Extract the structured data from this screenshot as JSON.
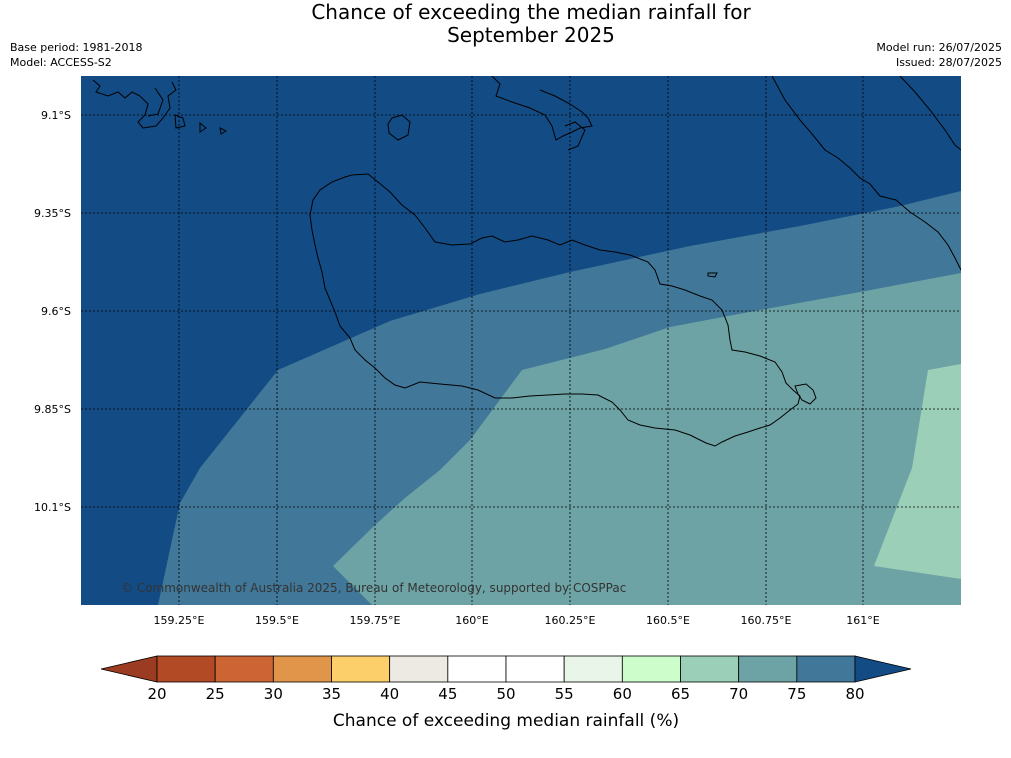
{
  "header": {
    "title_line1": "Chance of exceeding the median rainfall for",
    "title_line2": "September 2025",
    "base_period": "Base period: 1981-2018",
    "model": "Model: ACCESS-S2",
    "model_run": "Model run: 26/07/2025",
    "issued": "Issued: 28/07/2025"
  },
  "map": {
    "lat_labels": [
      "9.1°S",
      "9.35°S",
      "9.6°S",
      "9.85°S",
      "10.1°S"
    ],
    "lon_labels": [
      "159.25°E",
      "159.5°E",
      "159.75°E",
      "160°E",
      "160.25°E",
      "160.5°E",
      "160.75°E",
      "161°E"
    ],
    "credit": "© Commonwealth of Australia 2025, Bureau of Meteorology, supported by COSPPac",
    "zone_colors": {
      "75_80": "#134b85",
      "70_75": "#417798",
      "65_70": "#6ea3a5",
      "60_65": "#9bcfb8"
    }
  },
  "colorbar": {
    "ticks": [
      "20",
      "25",
      "30",
      "35",
      "40",
      "45",
      "50",
      "55",
      "60",
      "65",
      "70",
      "75",
      "80"
    ],
    "label": "Chance of exceeding median rainfall (%)",
    "colors": [
      "#9b3b21",
      "#b24a26",
      "#cd6434",
      "#e1954a",
      "#fdcf6b",
      "#ede9e3",
      "#ffffff",
      "#ffffff",
      "#e8f5e8",
      "#ccfdcb",
      "#9bcfb8",
      "#6ea3a5",
      "#417798",
      "#134b85"
    ]
  }
}
